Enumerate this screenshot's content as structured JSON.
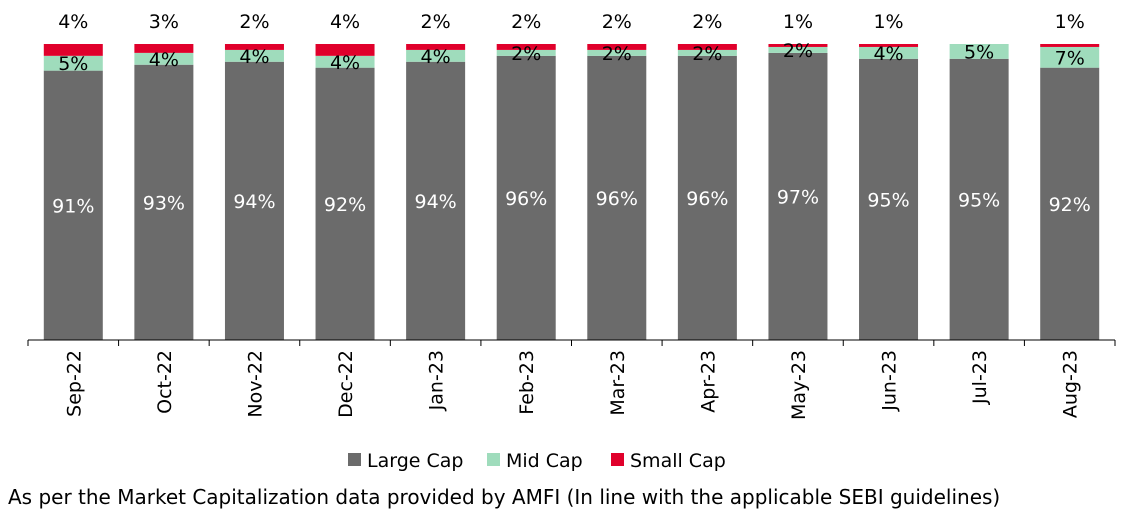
{
  "chart_data": {
    "type": "bar",
    "stacked": true,
    "normalized_percent": true,
    "categories": [
      "Sep-22",
      "Oct-22",
      "Nov-22",
      "Dec-22",
      "Jan-23",
      "Feb-23",
      "Mar-23",
      "Apr-23",
      "May-23",
      "Jun-23",
      "Jul-23",
      "Aug-23"
    ],
    "series": [
      {
        "name": "Large Cap",
        "color": "#6b6b6b",
        "values": [
          91,
          93,
          94,
          92,
          94,
          96,
          96,
          96,
          97,
          95,
          95,
          92
        ],
        "labels": [
          "91%",
          "93%",
          "94%",
          "92%",
          "94%",
          "96%",
          "96%",
          "96%",
          "97%",
          "95%",
          "95%",
          "92%"
        ]
      },
      {
        "name": "Mid Cap",
        "color": "#9fdcbc",
        "values": [
          5,
          4,
          4,
          4,
          4,
          2,
          2,
          2,
          2,
          4,
          5,
          7
        ],
        "labels": [
          "5%",
          "4%",
          "4%",
          "4%",
          "4%",
          "2%",
          "2%",
          "2%",
          "2%",
          "4%",
          "5%",
          "7%"
        ]
      },
      {
        "name": "Small Cap",
        "color": "#e0002b",
        "values": [
          4,
          3,
          2,
          4,
          2,
          2,
          2,
          2,
          1,
          1,
          0,
          1
        ],
        "labels": [
          "4%",
          "3%",
          "2%",
          "4%",
          "2%",
          "2%",
          "2%",
          "2%",
          "1%",
          "1%",
          "",
          "1%"
        ]
      }
    ],
    "ylim": [
      0,
      100
    ],
    "grid": false,
    "legend": "bottom",
    "title": "",
    "xlabel": "",
    "ylabel": ""
  },
  "footnote": "As per the Market Capitalization data provided by AMFI (In line with the applicable SEBI guidelines)"
}
